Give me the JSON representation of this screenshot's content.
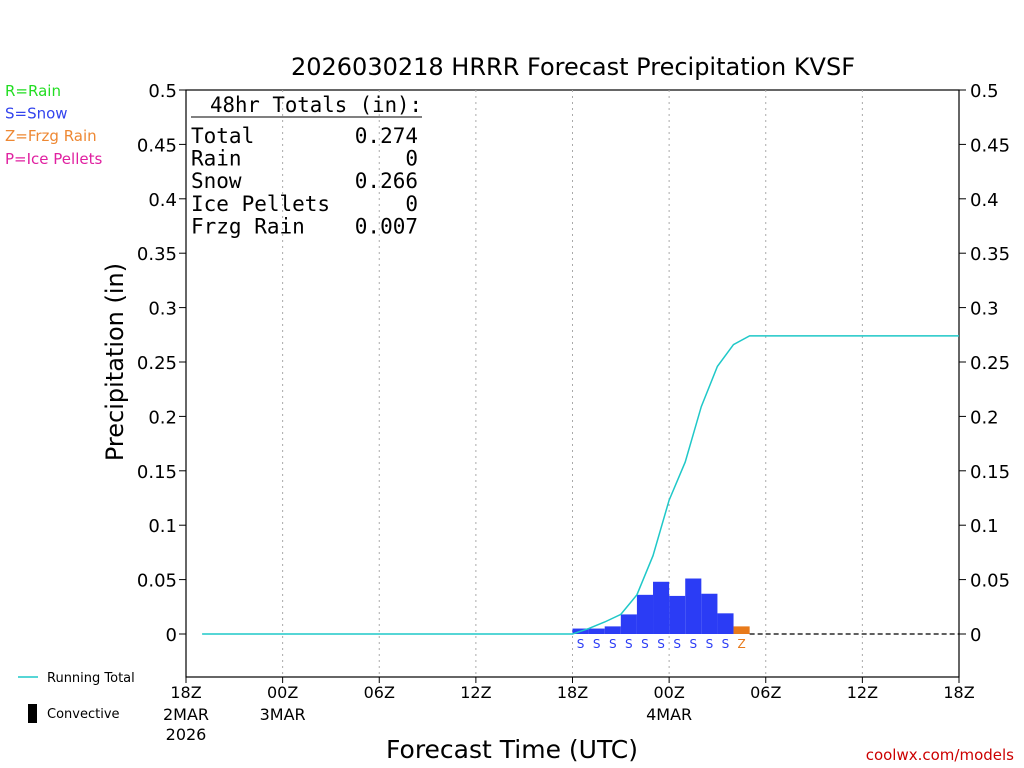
{
  "chart_data": {
    "type": "bar",
    "title": "2026030218 HRRR Forecast Precipitation KVSF",
    "xlabel": "Forecast Time (UTC)",
    "ylabel": "Precipitation (in)",
    "ylim": [
      -0.04,
      0.5
    ],
    "yticks": [
      "0.5",
      "0.45",
      "0.4",
      "0.35",
      "0.3",
      "0.25",
      "0.2",
      "0.15",
      "0.1",
      "0.05",
      "0"
    ],
    "ytick_values": [
      0.5,
      0.45,
      0.4,
      0.35,
      0.3,
      0.25,
      0.2,
      0.15,
      0.1,
      0.05,
      0
    ],
    "xlim_hours": [
      0,
      48
    ],
    "xticks": [
      {
        "hour": 0,
        "label": "18Z",
        "sub1": "2MAR",
        "sub2": "2026"
      },
      {
        "hour": 6,
        "label": "00Z",
        "sub1": "3MAR",
        "sub2": ""
      },
      {
        "hour": 12,
        "label": "06Z",
        "sub1": "",
        "sub2": ""
      },
      {
        "hour": 18,
        "label": "12Z",
        "sub1": "",
        "sub2": ""
      },
      {
        "hour": 24,
        "label": "18Z",
        "sub1": "",
        "sub2": ""
      },
      {
        "hour": 30,
        "label": "00Z",
        "sub1": "4MAR",
        "sub2": ""
      },
      {
        "hour": 36,
        "label": "06Z",
        "sub1": "",
        "sub2": ""
      },
      {
        "hour": 42,
        "label": "12Z",
        "sub1": "",
        "sub2": ""
      },
      {
        "hour": 48,
        "label": "18Z",
        "sub1": "",
        "sub2": ""
      }
    ],
    "bars": [
      {
        "hour": 25,
        "value": 0.005,
        "type": "S"
      },
      {
        "hour": 26,
        "value": 0.005,
        "type": "S"
      },
      {
        "hour": 27,
        "value": 0.007,
        "type": "S"
      },
      {
        "hour": 28,
        "value": 0.018,
        "type": "S"
      },
      {
        "hour": 29,
        "value": 0.036,
        "type": "S"
      },
      {
        "hour": 30,
        "value": 0.048,
        "type": "S"
      },
      {
        "hour": 31,
        "value": 0.035,
        "type": "S"
      },
      {
        "hour": 32,
        "value": 0.051,
        "type": "S"
      },
      {
        "hour": 33,
        "value": 0.037,
        "type": "S"
      },
      {
        "hour": 34,
        "value": 0.019,
        "type": "S"
      },
      {
        "hour": 35,
        "value": 0.007,
        "type": "Z"
      }
    ],
    "running_total": {
      "x": [
        1,
        24,
        25,
        26,
        27,
        28,
        29,
        30,
        31,
        32,
        33,
        34,
        35,
        48
      ],
      "y": [
        0,
        0,
        0.005,
        0.011,
        0.018,
        0.036,
        0.072,
        0.123,
        0.158,
        0.209,
        0.246,
        0.266,
        0.274,
        0.274
      ]
    },
    "type_colors": {
      "S": "#2b3cf5",
      "Z": "#e87a1a",
      "R": "#22cc22",
      "P": "#e020a0"
    },
    "running_total_color": "#1fc8c8"
  },
  "legend_types": [
    {
      "label": "R=Rain",
      "color": "#22dd22"
    },
    {
      "label": "S=Snow",
      "color": "#3344ee"
    },
    {
      "label": "Z=Frzg Rain",
      "color": "#ee8833"
    },
    {
      "label": "P=Ice Pellets",
      "color": "#e020a0"
    }
  ],
  "totals": {
    "header": "48hr Totals (in):",
    "rows": [
      {
        "label": "Total",
        "value": "0.274"
      },
      {
        "label": "Rain",
        "value": "0"
      },
      {
        "label": "Snow",
        "value": "0.266"
      },
      {
        "label": "Ice Pellets",
        "value": "0"
      },
      {
        "label": "Frzg Rain",
        "value": "0.007"
      }
    ]
  },
  "bottom_legend": {
    "running_total": "Running Total",
    "convective": "Convective"
  },
  "credit": "coolwx.com/models"
}
